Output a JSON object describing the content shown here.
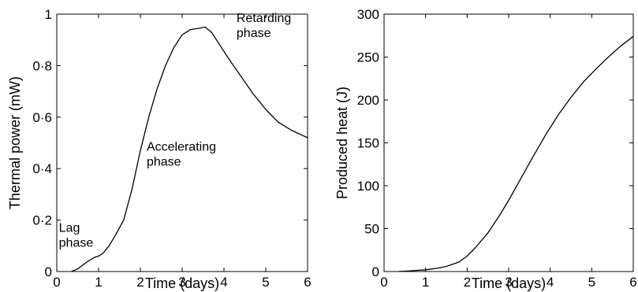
{
  "chart_data": [
    {
      "type": "line",
      "xlabel": "Time (days)",
      "ylabel": "Thermal power (mW)",
      "xlim": [
        0,
        6
      ],
      "ylim": [
        0,
        1
      ],
      "xticks": [
        0,
        1,
        2,
        3,
        4,
        5,
        6
      ],
      "xtick_labels": [
        "0",
        "1",
        "2",
        "3",
        "4",
        "5",
        "6"
      ],
      "yticks": [
        0,
        0.2,
        0.4,
        0.6,
        0.8,
        1
      ],
      "ytick_labels": [
        "0",
        "0·2",
        "0·4",
        "0·6",
        "0·8",
        "1"
      ],
      "grid": false,
      "series": [
        {
          "x": [
            0.35,
            0.5,
            0.7,
            0.9,
            1.0,
            1.1,
            1.25,
            1.4,
            1.6,
            1.8,
            2.0,
            2.2,
            2.4,
            2.6,
            2.8,
            3.0,
            3.2,
            3.4,
            3.55,
            3.7,
            3.9,
            4.1,
            4.4,
            4.7,
            5.0,
            5.3,
            5.6,
            6.0
          ],
          "y": [
            0.0,
            0.01,
            0.035,
            0.055,
            0.06,
            0.07,
            0.1,
            0.14,
            0.2,
            0.32,
            0.47,
            0.6,
            0.71,
            0.8,
            0.87,
            0.92,
            0.94,
            0.945,
            0.95,
            0.93,
            0.88,
            0.83,
            0.76,
            0.69,
            0.63,
            0.58,
            0.55,
            0.52
          ]
        }
      ],
      "annotations": [
        {
          "lines": [
            "Lag",
            "phase"
          ],
          "x": 0.05,
          "y": 0.155
        },
        {
          "lines": [
            "Accelerating",
            "phase"
          ],
          "x": 2.15,
          "y": 0.47
        },
        {
          "lines": [
            "Retarding",
            "phase"
          ],
          "x": 4.3,
          "y": 0.97
        }
      ]
    },
    {
      "type": "line",
      "xlabel": "Time (days)",
      "ylabel": "Produced heat (J)",
      "xlim": [
        0,
        6
      ],
      "ylim": [
        0,
        300
      ],
      "xticks": [
        0,
        1,
        2,
        3,
        4,
        5,
        6
      ],
      "xtick_labels": [
        "0",
        "1",
        "2",
        "3",
        "4",
        "5",
        "6"
      ],
      "yticks": [
        0,
        50,
        100,
        150,
        200,
        250,
        300
      ],
      "ytick_labels": [
        "0",
        "50",
        "100",
        "150",
        "200",
        "250",
        "300"
      ],
      "grid": false,
      "series": [
        {
          "x": [
            0.35,
            0.7,
            1.0,
            1.3,
            1.5,
            1.8,
            2.0,
            2.2,
            2.5,
            2.8,
            3.0,
            3.3,
            3.6,
            3.9,
            4.2,
            4.5,
            4.8,
            5.1,
            5.4,
            5.7,
            6.0
          ],
          "y": [
            0,
            1,
            2,
            4,
            6,
            11,
            18,
            28,
            45,
            67,
            83,
            109,
            135,
            160,
            183,
            203,
            221,
            236,
            250,
            263,
            274
          ]
        }
      ],
      "annotations": []
    }
  ]
}
